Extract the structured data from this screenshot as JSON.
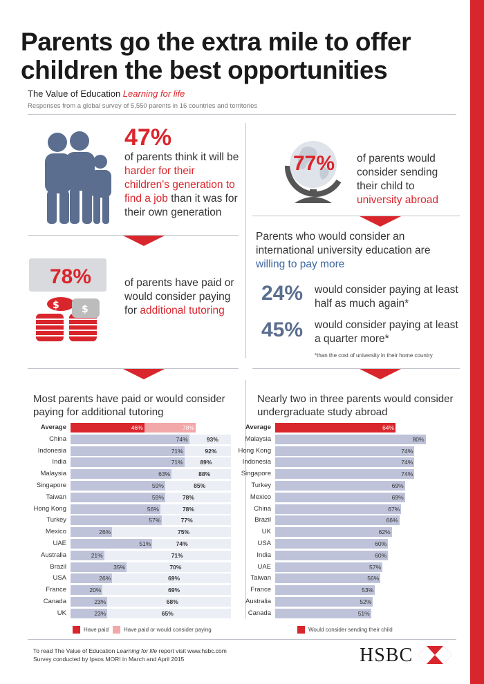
{
  "header": {
    "title": "Parents go the extra mile to offer children the best opportunities",
    "subtitle_main": "The Value of Education ",
    "subtitle_italic": "Learning for life",
    "survey_note": "Responses from a global survey of 5,550 parents in 16 countries and territories"
  },
  "stat_job": {
    "pct": "47%",
    "text_a": "of parents think it will be ",
    "text_red": "harder for their children's generation to find a job",
    "text_b": " than it was for their own generation"
  },
  "stat_abroad": {
    "pct": "77%",
    "text_a": "of parents would consider sending their child to ",
    "text_red": "university abroad"
  },
  "stat_tutoring": {
    "pct": "78%",
    "text_a": "of parents have paid or would consider paying for ",
    "text_red": "additional tutoring"
  },
  "pay_more": {
    "heading_a": "Parents who would consider an international university education are ",
    "heading_blue": "willing to pay more",
    "items": [
      {
        "pct": "24%",
        "text": "would consider paying at least half as much again*"
      },
      {
        "pct": "45%",
        "text": "would consider paying at least a quarter more*"
      }
    ],
    "footnote": "*than the cost of university in their home country"
  },
  "footer": {
    "line1_a": "To read The Value of Education ",
    "line1_italic": "Learning for life",
    "line1_b": " report visit www.hsbc.com",
    "line2": "Survey conducted by Ipsos MORI in March and April 2015",
    "brand": "HSBC"
  },
  "colors": {
    "red": "#d9262c",
    "pink": "#f2a7a9",
    "bar_blue": "#bec3d9",
    "bar_light": "#eceef5",
    "navy": "#5b6e8f"
  },
  "chart_data": [
    {
      "type": "bar",
      "title": "Most parents have paid or would consider paying for additional tutoring",
      "categories": [
        "Average",
        "China",
        "Indonesia",
        "India",
        "Malaysia",
        "Singapore",
        "Taiwan",
        "Hong Kong",
        "Turkey",
        "Mexico",
        "UAE",
        "Australia",
        "Brazil",
        "USA",
        "France",
        "Canada",
        "UK"
      ],
      "series": [
        {
          "name": "Have paid",
          "values": [
            46,
            74,
            71,
            71,
            63,
            59,
            59,
            56,
            57,
            26,
            51,
            21,
            35,
            26,
            20,
            23,
            23
          ]
        },
        {
          "name": "Have paid or would consider paying",
          "values": [
            78,
            93,
            92,
            89,
            88,
            85,
            78,
            78,
            77,
            75,
            74,
            71,
            70,
            69,
            69,
            68,
            65
          ]
        }
      ],
      "xlim": [
        0,
        100
      ],
      "legend": "bottom"
    },
    {
      "type": "bar",
      "title": "Nearly two in three parents would consider undergraduate study abroad",
      "categories": [
        "Average",
        "Malaysia",
        "Hong Kong",
        "Indonesia",
        "Singapore",
        "Turkey",
        "Mexico",
        "China",
        "Brazil",
        "UK",
        "USA",
        "India",
        "UAE",
        "Taiwan",
        "France",
        "Australia",
        "Canada"
      ],
      "series": [
        {
          "name": "Would consider sending their child",
          "values": [
            64,
            80,
            74,
            74,
            74,
            69,
            69,
            67,
            66,
            62,
            60,
            60,
            57,
            56,
            53,
            52,
            51
          ]
        }
      ],
      "xlim": [
        0,
        100
      ],
      "legend": "bottom"
    }
  ]
}
